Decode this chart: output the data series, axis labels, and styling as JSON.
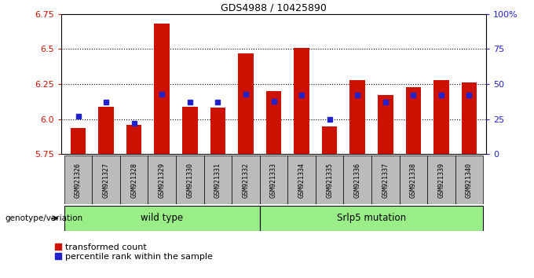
{
  "title": "GDS4988 / 10425890",
  "samples": [
    "GSM921326",
    "GSM921327",
    "GSM921328",
    "GSM921329",
    "GSM921330",
    "GSM921331",
    "GSM921332",
    "GSM921333",
    "GSM921334",
    "GSM921335",
    "GSM921336",
    "GSM921337",
    "GSM921338",
    "GSM921339",
    "GSM921340"
  ],
  "red_values": [
    5.94,
    6.09,
    5.96,
    6.68,
    6.09,
    6.08,
    6.47,
    6.2,
    6.51,
    5.95,
    6.28,
    6.17,
    6.23,
    6.28,
    6.26
  ],
  "blue_values": [
    27,
    37,
    22,
    43,
    37,
    37,
    43,
    38,
    42,
    25,
    42,
    37,
    42,
    42,
    42
  ],
  "baseline": 5.75,
  "ylim_left": [
    5.75,
    6.75
  ],
  "ylim_right": [
    0,
    100
  ],
  "yticks_left": [
    5.75,
    6.0,
    6.25,
    6.5,
    6.75
  ],
  "yticks_right": [
    0,
    25,
    50,
    75,
    100
  ],
  "ytick_labels_right": [
    "0",
    "25",
    "50",
    "75",
    "100%"
  ],
  "grid_lines": [
    6.0,
    6.25,
    6.5
  ],
  "bar_color": "#cc1100",
  "blue_color": "#2222cc",
  "group1_label": "wild type",
  "group1_range": [
    0,
    6
  ],
  "group2_label": "Srlp5 mutation",
  "group2_range": [
    7,
    14
  ],
  "group_bg_color": "#99ee88",
  "sample_bg_color": "#bbbbbb",
  "legend_red_label": "transformed count",
  "legend_blue_label": "percentile rank within the sample",
  "genotype_label": "genotype/variation"
}
